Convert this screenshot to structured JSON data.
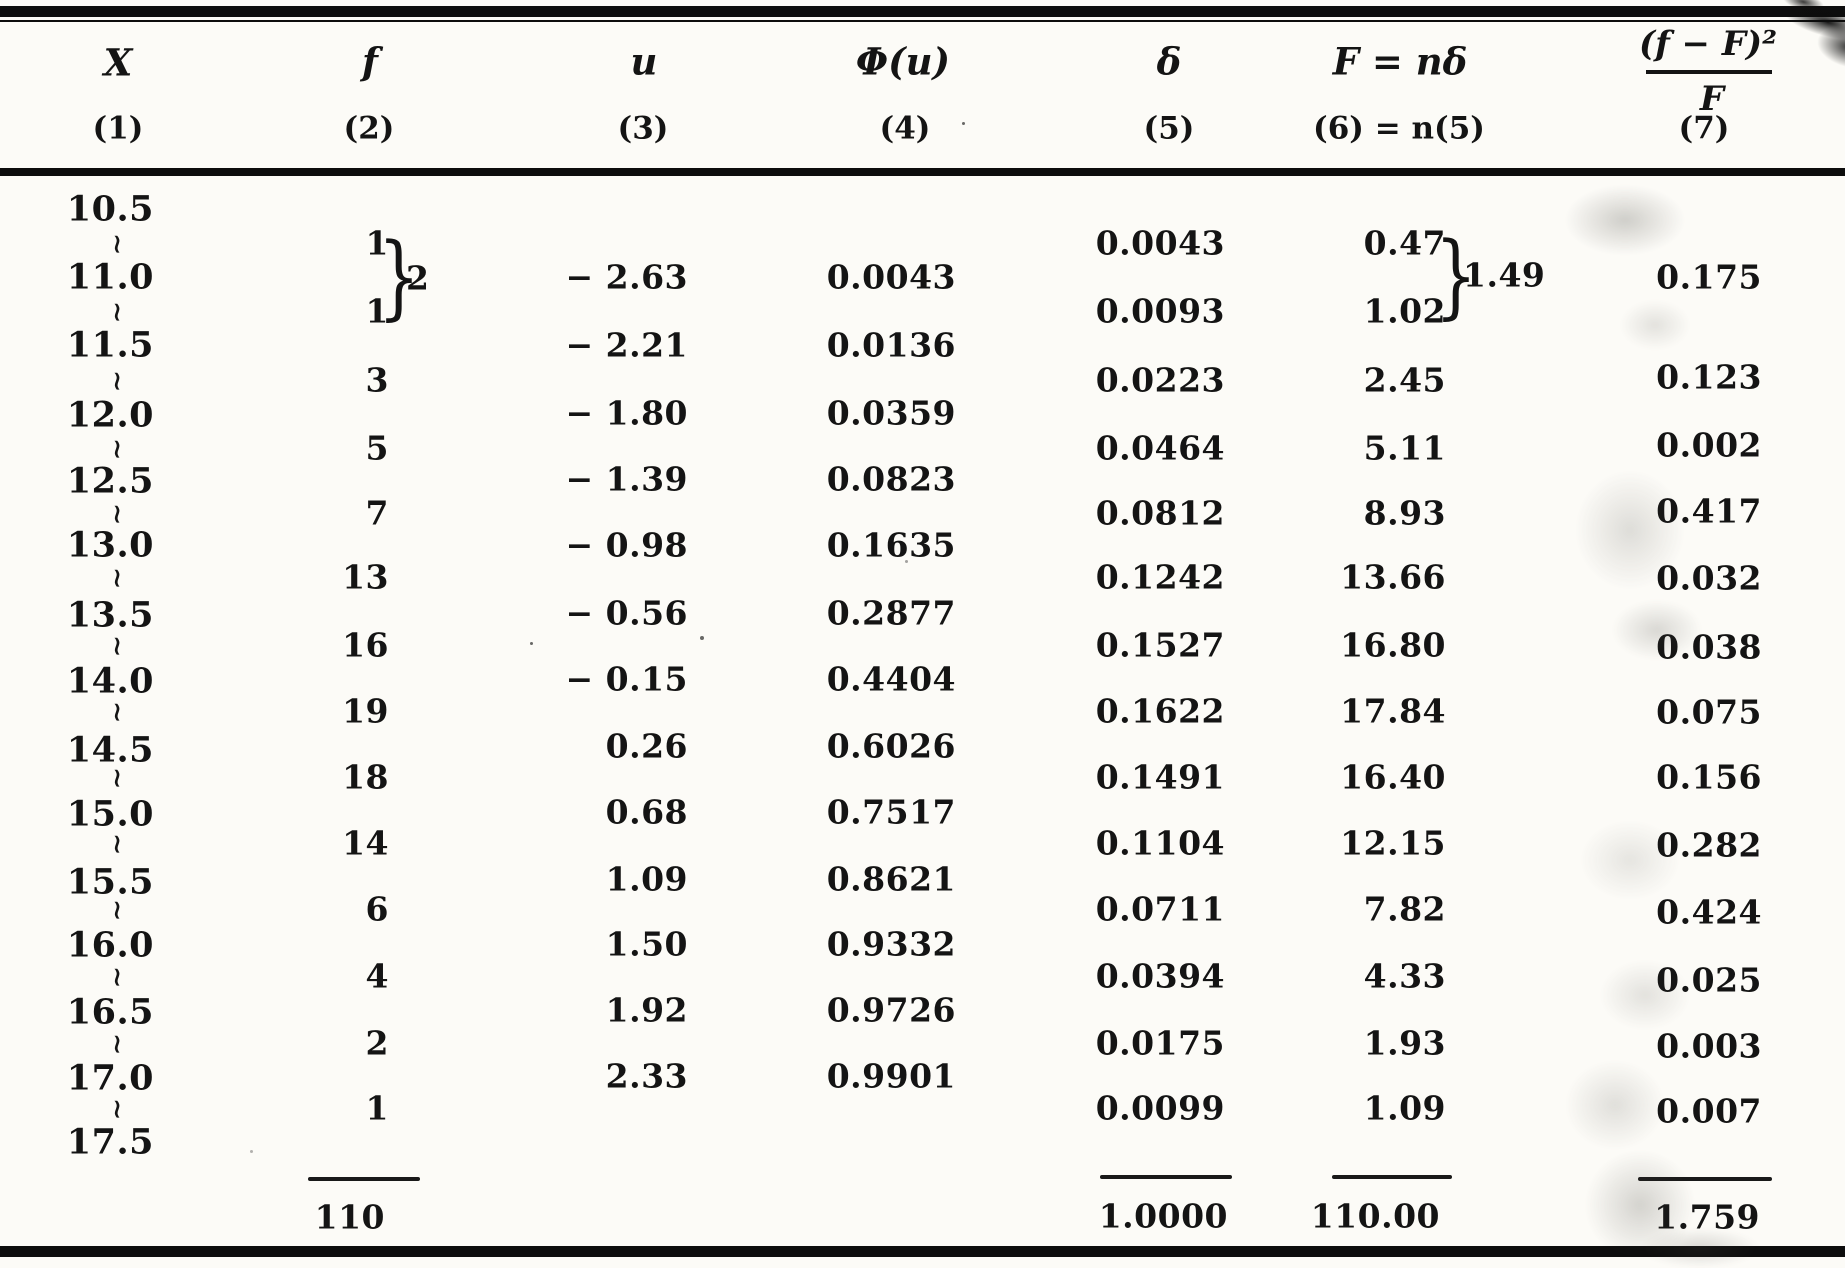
{
  "page": {
    "background": "#fcfbf7",
    "ink": "#141414"
  },
  "table": {
    "columns": [
      {
        "label": "X",
        "number": "(1)"
      },
      {
        "label": "f",
        "number": "(2)"
      },
      {
        "label": "u",
        "number": "(3)"
      },
      {
        "label": "Φ(u)",
        "number": "(4)"
      },
      {
        "label": "δ",
        "number": "(5)"
      },
      {
        "label": "F = nδ",
        "number": "(6) = n(5)"
      },
      {
        "label": "(f − F)²/F",
        "number": "(7)",
        "numerator": "(f − F)²",
        "denominator": "F"
      }
    ],
    "x_boundaries": [
      "10.5",
      "11.0",
      "11.5",
      "12.0",
      "12.5",
      "13.0",
      "13.5",
      "14.0",
      "14.5",
      "15.0",
      "15.5",
      "16.0",
      "16.5",
      "17.0",
      "17.5"
    ],
    "interval_symbol": "∼",
    "f_values": [
      "1",
      "1",
      "3",
      "5",
      "7",
      "13",
      "16",
      "19",
      "18",
      "14",
      "6",
      "4",
      "2",
      "1"
    ],
    "f_group": {
      "brace": "}",
      "total": "2"
    },
    "u_values": [
      "− 2.63",
      "− 2.21",
      "− 1.80",
      "− 1.39",
      "− 0.98",
      "− 0.56",
      "− 0.15",
      "0.26",
      "0.68",
      "1.09",
      "1.50",
      "1.92",
      "2.33"
    ],
    "phi_values": [
      "0.0043",
      "0.0136",
      "0.0359",
      "0.0823",
      "0.1635",
      "0.2877",
      "0.4404",
      "0.6026",
      "0.7517",
      "0.8621",
      "0.9332",
      "0.9726",
      "0.9901"
    ],
    "delta_values": [
      "0.0043",
      "0.0093",
      "0.0223",
      "0.0464",
      "0.0812",
      "0.1242",
      "0.1527",
      "0.1622",
      "0.1491",
      "0.1104",
      "0.0711",
      "0.0394",
      "0.0175",
      "0.0099"
    ],
    "expected_values": [
      "0.47",
      "1.02",
      "2.45",
      "5.11",
      "8.93",
      "13.66",
      "16.80",
      "17.84",
      "16.40",
      "12.15",
      "7.82",
      "4.33",
      "1.93",
      "1.09"
    ],
    "expected_group": {
      "brace": "}",
      "total": "1.49"
    },
    "chi_values": [
      "0.175",
      "0.123",
      "0.002",
      "0.417",
      "0.032",
      "0.038",
      "0.075",
      "0.156",
      "0.282",
      "0.424",
      "0.025",
      "0.003",
      "0.007"
    ],
    "totals": {
      "f": "110",
      "delta": "1.0000",
      "expected": "110.00",
      "chi": "1.759"
    }
  }
}
